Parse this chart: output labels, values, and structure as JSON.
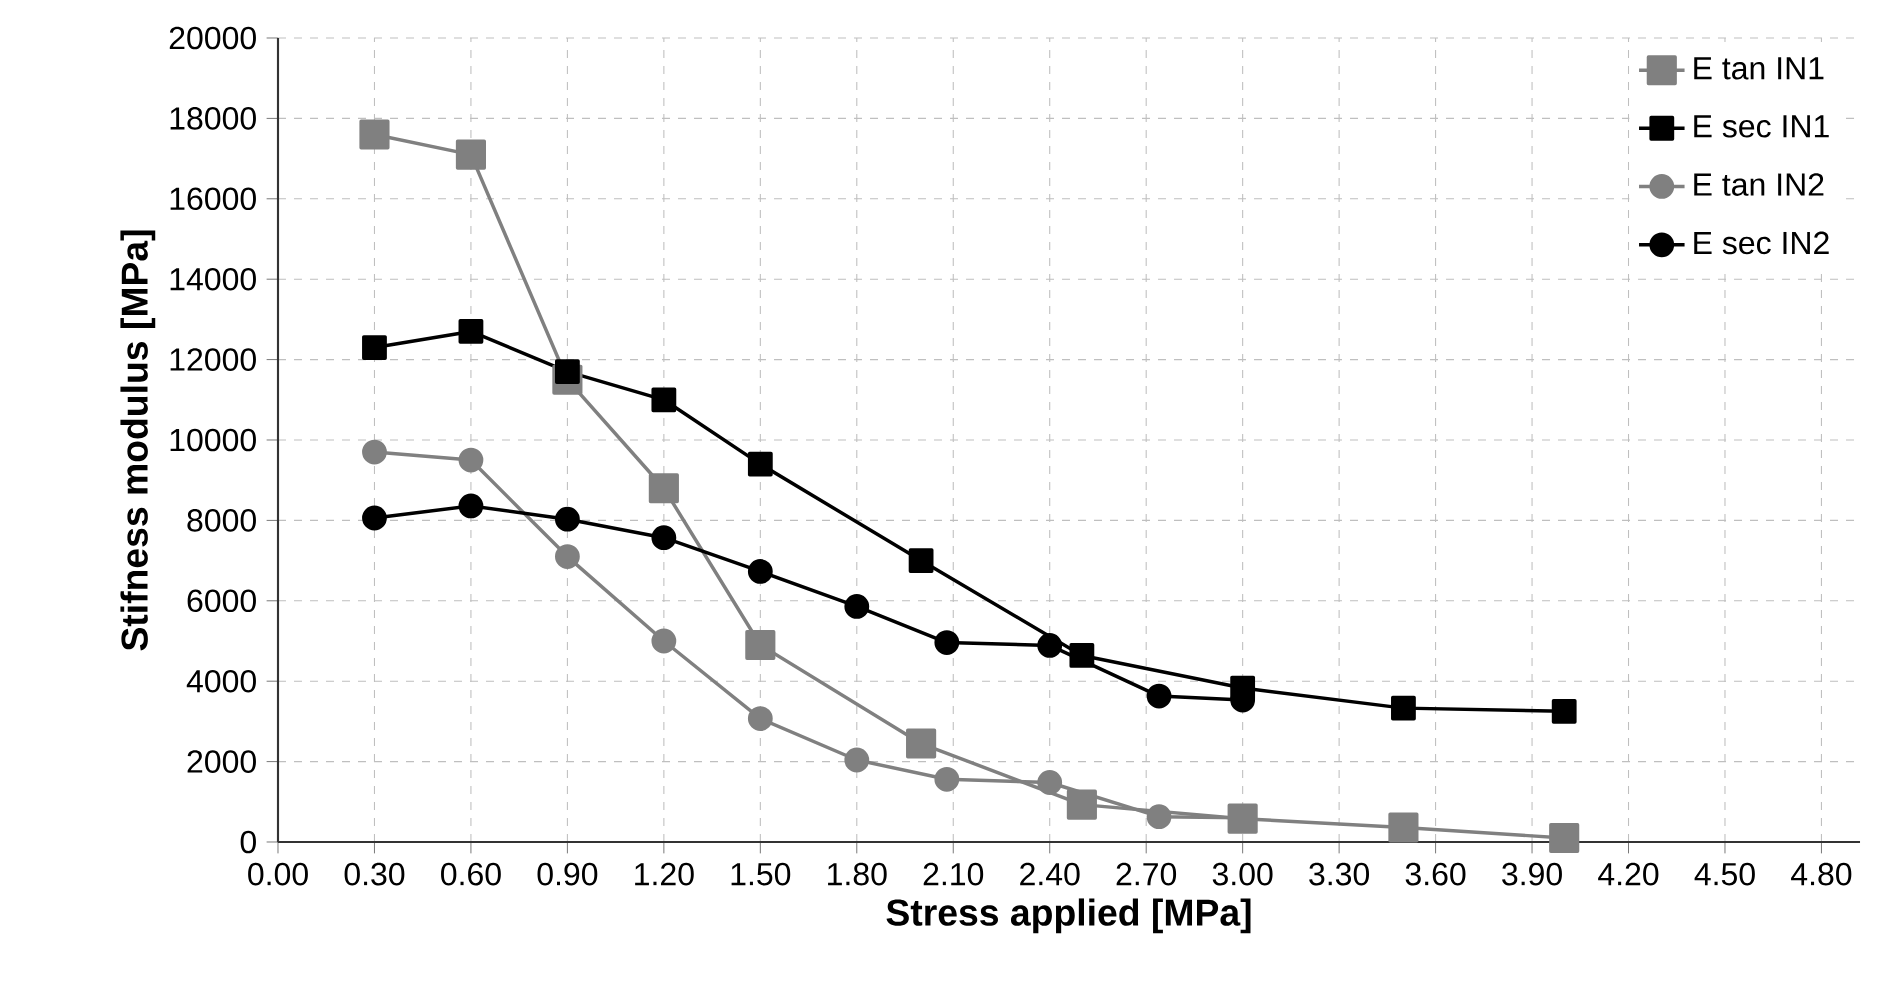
{
  "chart_data": {
    "type": "line",
    "xlabel": "Stress applied [MPa]",
    "ylabel": "Stifness modulus [MPa]",
    "xlim": [
      0,
      4.92
    ],
    "ylim": [
      0,
      20000
    ],
    "xticks": [
      {
        "value": 0,
        "label": "0.00"
      },
      {
        "value": 0.3,
        "label": "0.30"
      },
      {
        "value": 0.6,
        "label": "0.60"
      },
      {
        "value": 0.9,
        "label": "0.90"
      },
      {
        "value": 1.2,
        "label": "1.20"
      },
      {
        "value": 1.5,
        "label": "1.50"
      },
      {
        "value": 1.8,
        "label": "1.80"
      },
      {
        "value": 2.1,
        "label": "2.10"
      },
      {
        "value": 2.4,
        "label": "2.40"
      },
      {
        "value": 2.7,
        "label": "2.70"
      },
      {
        "value": 3.0,
        "label": "3.00"
      },
      {
        "value": 3.3,
        "label": "3.30"
      },
      {
        "value": 3.6,
        "label": "3.60"
      },
      {
        "value": 3.9,
        "label": "3.90"
      },
      {
        "value": 4.2,
        "label": "4.20"
      },
      {
        "value": 4.5,
        "label": "4.50"
      },
      {
        "value": 4.8,
        "label": "4.80"
      }
    ],
    "yticks": [
      0,
      2000,
      4000,
      6000,
      8000,
      10000,
      12000,
      14000,
      16000,
      18000,
      20000
    ],
    "grid": true,
    "legend": "top right",
    "line_style": "solid",
    "series": [
      {
        "name": "E tan IN1",
        "color": "#808080",
        "marker": "square",
        "x": [
          0.3,
          0.6,
          0.9,
          1.2,
          1.5,
          2.0,
          2.5,
          3.0,
          3.5,
          4.0
        ],
        "values": [
          17600,
          17100,
          11500,
          8800,
          4900,
          2450,
          930,
          580,
          360,
          100
        ]
      },
      {
        "name": "E sec IN1",
        "color": "#000000",
        "marker": "square",
        "x": [
          0.3,
          0.6,
          0.9,
          1.2,
          1.5,
          2.0,
          2.5,
          3.0,
          3.5,
          4.0
        ],
        "values": [
          12300,
          12700,
          11700,
          11000,
          9400,
          7000,
          4640,
          3830,
          3330,
          3250
        ]
      },
      {
        "name": "E tan IN2",
        "color": "#808080",
        "marker": "circle",
        "x": [
          0.3,
          0.6,
          0.9,
          1.2,
          1.5,
          1.8,
          2.08,
          2.4,
          2.74,
          3.0
        ],
        "values": [
          9700,
          9500,
          7100,
          5000,
          3070,
          2040,
          1560,
          1480,
          630,
          600
        ]
      },
      {
        "name": "E sec IN2",
        "color": "#000000",
        "marker": "circle",
        "x": [
          0.3,
          0.6,
          0.9,
          1.2,
          1.5,
          1.8,
          2.08,
          2.4,
          2.74,
          3.0
        ],
        "values": [
          8060,
          8360,
          8030,
          7570,
          6730,
          5860,
          4960,
          4890,
          3630,
          3530
        ]
      }
    ]
  }
}
